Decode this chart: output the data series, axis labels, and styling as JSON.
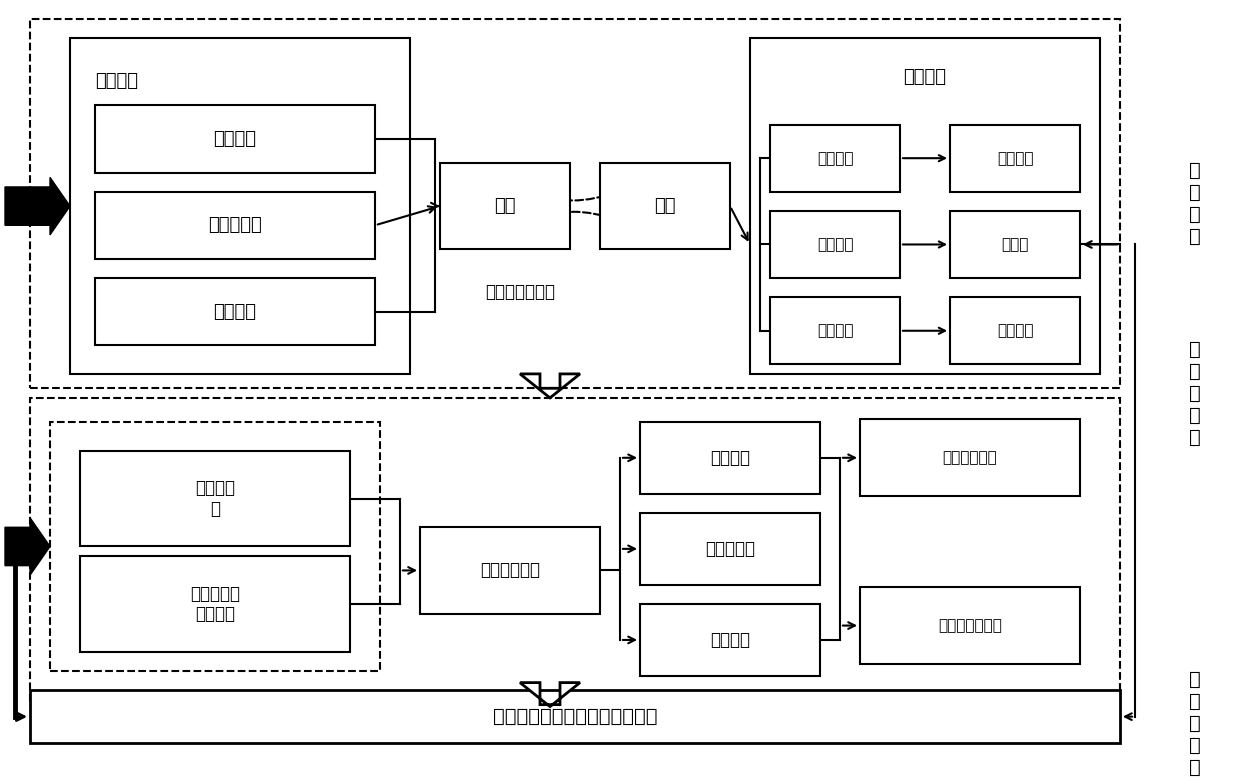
{
  "fig_width": 12.4,
  "fig_height": 7.82,
  "right_labels": [
    "过\n程\n机\n制",
    "制\n图\n与\n管\n理",
    "管\n控\n値\n确\n定"
  ],
  "boxes": {
    "input_flux_title": "输入通量",
    "natural": "自然来源",
    "industry": "工业、交通",
    "agriculture": "农业利用",
    "input_box": "输入",
    "output_box": "输出",
    "migrate_risk_title": "迁移风险",
    "crop": "作物吸收",
    "human": "人体健康",
    "water_migrate": "水体迁移",
    "water_env": "水环境",
    "eco_env": "生态环境",
    "eco_safety": "生态安全",
    "gui_qu_label": "重金属归趋过程",
    "plant_model": "植物吸收\n型",
    "water_model": "水环境迁移\n转化模型",
    "critical_model": "临界负荷模型",
    "current_balance": "现状平衡",
    "water_effect": "水环境效应",
    "health_risk": "健康风险",
    "critical_map": "临界负荷制图",
    "exceed_map": "超临界负荷制图",
    "final_box": "土壤中重金属风险管控値的确定"
  }
}
